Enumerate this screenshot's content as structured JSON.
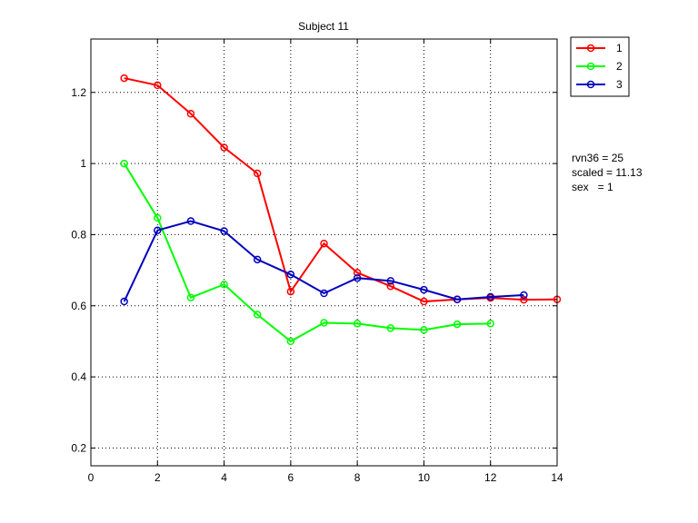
{
  "chart_data": {
    "type": "line",
    "title": "Subject 11",
    "xlabel": "",
    "ylabel": "",
    "xlim": [
      0,
      14
    ],
    "ylim": [
      0.15,
      1.35
    ],
    "xticks": [
      0,
      2,
      4,
      6,
      8,
      10,
      12,
      14
    ],
    "xtick_labels": [
      "0",
      "2",
      "4",
      "6",
      "8",
      "10",
      "12",
      "14"
    ],
    "yticks": [
      0.2,
      0.4,
      0.6,
      0.8,
      1.0,
      1.2
    ],
    "ytick_labels": [
      "0.2",
      "0.4",
      "0.6",
      "0.8",
      "1",
      "1.2"
    ],
    "grid": true,
    "marker": "circle",
    "legend_position": "outside-top-right",
    "series": [
      {
        "name": "1",
        "color": "#ff0000",
        "x": [
          1,
          2,
          3,
          4,
          5,
          6,
          7,
          8,
          9,
          10,
          11,
          12,
          13,
          14
        ],
        "y": [
          1.24,
          1.22,
          1.14,
          1.045,
          0.972,
          0.64,
          0.775,
          0.693,
          0.655,
          0.612,
          0.618,
          0.622,
          0.617,
          0.618
        ]
      },
      {
        "name": "2",
        "color": "#00ff00",
        "x": [
          1,
          2,
          3,
          4,
          5,
          6,
          7,
          8,
          9,
          10,
          11,
          12
        ],
        "y": [
          1.0,
          0.847,
          0.623,
          0.66,
          0.575,
          0.5,
          0.552,
          0.55,
          0.537,
          0.532,
          0.548,
          0.55
        ]
      },
      {
        "name": "3",
        "color": "#0000bf",
        "x": [
          1,
          2,
          3,
          4,
          5,
          6,
          7,
          8,
          9,
          10,
          11,
          12,
          13
        ],
        "y": [
          0.612,
          0.812,
          0.838,
          0.81,
          0.73,
          0.688,
          0.635,
          0.678,
          0.67,
          0.645,
          0.618,
          0.625,
          0.63
        ]
      }
    ],
    "annotations": [
      "rvn36 = 25",
      "scaled = 11.13",
      "sex   = 1"
    ]
  }
}
